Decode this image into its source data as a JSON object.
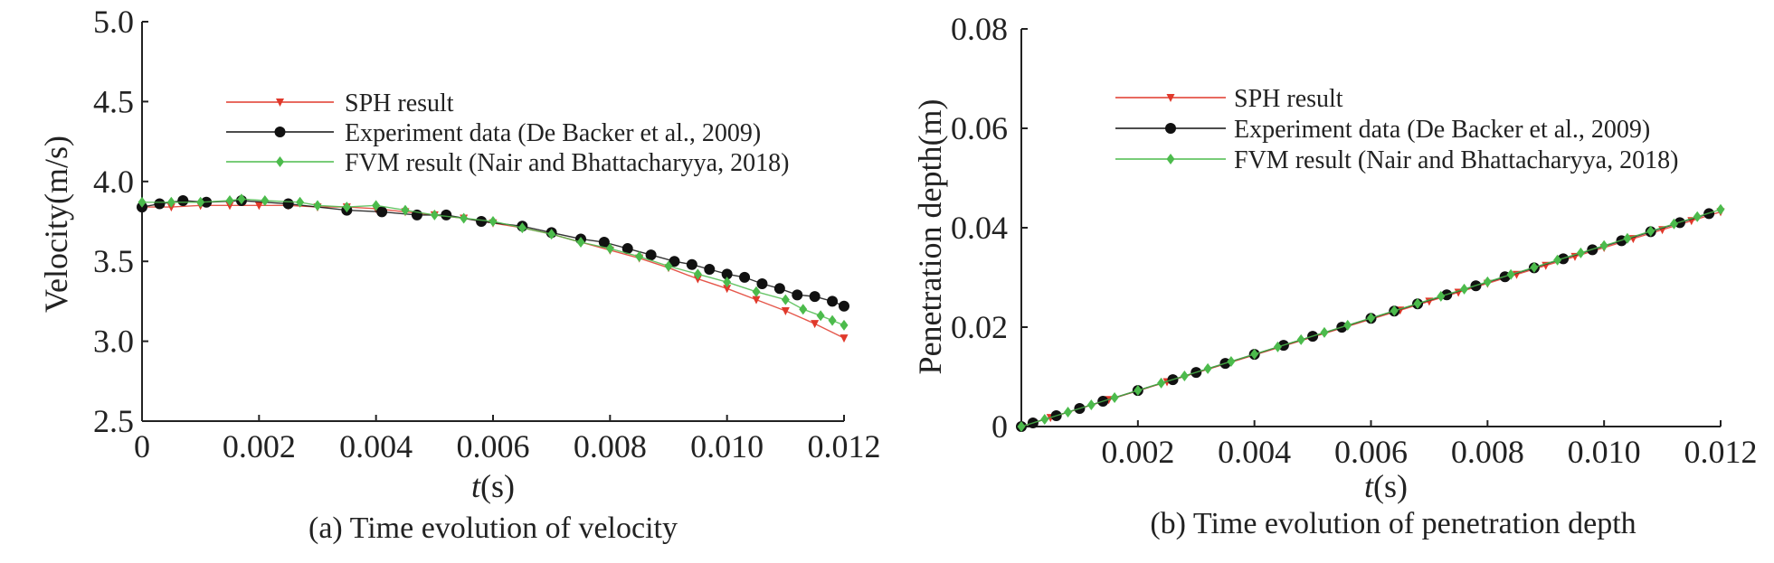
{
  "colors": {
    "sph": "#e0392b",
    "experiment": "#111111",
    "fvm": "#4cbb4c",
    "axis": "#222222"
  },
  "chart_data": [
    {
      "type": "line",
      "caption": "(a) Time evolution of velocity",
      "xlabel_italic": "t",
      "xlabel_unit": "(s)",
      "ylabel": "Velocity(m/s)",
      "xlim": [
        0,
        0.012
      ],
      "ylim": [
        2.5,
        5.0
      ],
      "xticks": [
        0,
        0.002,
        0.004,
        0.006,
        0.008,
        0.01,
        0.012
      ],
      "xtick_labels": [
        "0",
        "0.002",
        "0.004",
        "0.006",
        "0.008",
        "0.010",
        "0.012"
      ],
      "yticks": [
        2.5,
        3.0,
        3.5,
        4.0,
        4.5,
        5.0
      ],
      "ytick_labels": [
        "2.5",
        "3.0",
        "3.5",
        "4.0",
        "4.5",
        "5.0"
      ],
      "grid": false,
      "legend_position": "top-center",
      "series": [
        {
          "name": "SPH result",
          "marker": "triangle-down",
          "color_key": "sph",
          "x": [
            0,
            0.0005,
            0.001,
            0.0015,
            0.002,
            0.0025,
            0.003,
            0.0035,
            0.004,
            0.0045,
            0.005,
            0.0055,
            0.006,
            0.0065,
            0.007,
            0.0075,
            0.008,
            0.0085,
            0.009,
            0.0095,
            0.01,
            0.0105,
            0.011,
            0.0115,
            0.012
          ],
          "y": [
            3.84,
            3.84,
            3.85,
            3.85,
            3.85,
            3.85,
            3.84,
            3.84,
            3.83,
            3.81,
            3.79,
            3.77,
            3.74,
            3.71,
            3.67,
            3.62,
            3.57,
            3.52,
            3.46,
            3.39,
            3.33,
            3.26,
            3.19,
            3.11,
            3.02
          ]
        },
        {
          "name": "Experiment data (De Backer et al., 2009)",
          "marker": "circle",
          "color_key": "experiment",
          "x": [
            0,
            0.0003,
            0.0007,
            0.0011,
            0.0017,
            0.0025,
            0.0035,
            0.0041,
            0.0047,
            0.0052,
            0.0058,
            0.0065,
            0.007,
            0.0075,
            0.0079,
            0.0083,
            0.0087,
            0.0091,
            0.0094,
            0.0097,
            0.01,
            0.0103,
            0.0106,
            0.0109,
            0.0112,
            0.0115,
            0.0118,
            0.012
          ],
          "y": [
            3.84,
            3.86,
            3.88,
            3.87,
            3.88,
            3.86,
            3.82,
            3.81,
            3.79,
            3.79,
            3.75,
            3.72,
            3.68,
            3.64,
            3.62,
            3.58,
            3.54,
            3.5,
            3.48,
            3.45,
            3.42,
            3.4,
            3.36,
            3.33,
            3.29,
            3.28,
            3.25,
            3.22
          ]
        },
        {
          "name": "FVM result (Nair and Bhattacharyya, 2018)",
          "marker": "diamond",
          "color_key": "fvm",
          "x": [
            0,
            0.0005,
            0.001,
            0.0015,
            0.0017,
            0.0021,
            0.0027,
            0.003,
            0.0035,
            0.004,
            0.0045,
            0.005,
            0.0055,
            0.006,
            0.0065,
            0.007,
            0.0075,
            0.008,
            0.0085,
            0.009,
            0.0095,
            0.01,
            0.0105,
            0.011,
            0.0113,
            0.0116,
            0.0118,
            0.012
          ],
          "y": [
            3.87,
            3.87,
            3.87,
            3.88,
            3.89,
            3.88,
            3.87,
            3.85,
            3.84,
            3.85,
            3.82,
            3.79,
            3.77,
            3.75,
            3.71,
            3.67,
            3.62,
            3.58,
            3.53,
            3.47,
            3.42,
            3.37,
            3.31,
            3.26,
            3.2,
            3.16,
            3.13,
            3.1
          ]
        }
      ]
    },
    {
      "type": "line",
      "caption": "(b) Time evolution of penetration depth",
      "xlabel_italic": "t",
      "xlabel_unit": "(s)",
      "ylabel": "Penetration depth(m)",
      "xlim": [
        0,
        0.012
      ],
      "ylim": [
        0,
        0.08
      ],
      "xticks": [
        0.002,
        0.004,
        0.006,
        0.008,
        0.01,
        0.012
      ],
      "xtick_labels": [
        "0.002",
        "0.004",
        "0.006",
        "0.008",
        "0.010",
        "0.012"
      ],
      "yticks": [
        0,
        0.02,
        0.04,
        0.06,
        0.08
      ],
      "ytick_labels": [
        "0",
        "0.02",
        "0.04",
        "0.06",
        "0.08"
      ],
      "grid": false,
      "legend_position": "top-center",
      "series": [
        {
          "name": "SPH result",
          "marker": "triangle-down",
          "color_key": "sph",
          "x": [
            0,
            0.0005,
            0.001,
            0.0015,
            0.002,
            0.0025,
            0.003,
            0.0035,
            0.004,
            0.0045,
            0.005,
            0.0055,
            0.006,
            0.0065,
            0.007,
            0.0075,
            0.008,
            0.0085,
            0.009,
            0.0095,
            0.01,
            0.0105,
            0.011,
            0.0115,
            0.012
          ],
          "y": [
            0,
            0.0018,
            0.0036,
            0.0054,
            0.0072,
            0.009,
            0.0108,
            0.0126,
            0.0144,
            0.0162,
            0.018,
            0.0198,
            0.0216,
            0.0234,
            0.0252,
            0.027,
            0.0288,
            0.0306,
            0.0324,
            0.0342,
            0.036,
            0.0378,
            0.0396,
            0.0414,
            0.0432
          ]
        },
        {
          "name": "Experiment data (De Backer et al., 2009)",
          "marker": "circle",
          "color_key": "experiment",
          "x": [
            0,
            0.0002,
            0.0006,
            0.001,
            0.0014,
            0.002,
            0.0026,
            0.003,
            0.0035,
            0.004,
            0.0045,
            0.005,
            0.0055,
            0.006,
            0.0064,
            0.0068,
            0.0073,
            0.0078,
            0.0083,
            0.0088,
            0.0093,
            0.0098,
            0.0103,
            0.0108,
            0.0113,
            0.0118
          ],
          "y": [
            0,
            0.00073,
            0.00218,
            0.00363,
            0.00508,
            0.00726,
            0.00944,
            0.01089,
            0.01271,
            0.01452,
            0.01634,
            0.01815,
            0.01997,
            0.02178,
            0.02323,
            0.02468,
            0.0265,
            0.02831,
            0.03013,
            0.03194,
            0.03376,
            0.03557,
            0.03739,
            0.0392,
            0.04102,
            0.04283
          ]
        },
        {
          "name": "FVM result (Nair and Bhattacharyya, 2018)",
          "marker": "diamond",
          "color_key": "fvm",
          "x": [
            0,
            0.0004,
            0.0008,
            0.0012,
            0.0016,
            0.002,
            0.0024,
            0.0028,
            0.0032,
            0.0036,
            0.004,
            0.0044,
            0.0048,
            0.0052,
            0.0056,
            0.006,
            0.0064,
            0.0068,
            0.0072,
            0.0076,
            0.008,
            0.0084,
            0.0088,
            0.0092,
            0.0096,
            0.01,
            0.0104,
            0.0108,
            0.0112,
            0.0116,
            0.012
          ],
          "y": [
            0,
            0.00146,
            0.00291,
            0.00437,
            0.00582,
            0.00728,
            0.00874,
            0.01019,
            0.01165,
            0.0131,
            0.01456,
            0.01602,
            0.01747,
            0.01893,
            0.02038,
            0.02184,
            0.0233,
            0.02475,
            0.02621,
            0.02766,
            0.02912,
            0.03058,
            0.03203,
            0.03349,
            0.03494,
            0.0364,
            0.03786,
            0.03931,
            0.04077,
            0.04222,
            0.04368
          ]
        }
      ]
    }
  ]
}
